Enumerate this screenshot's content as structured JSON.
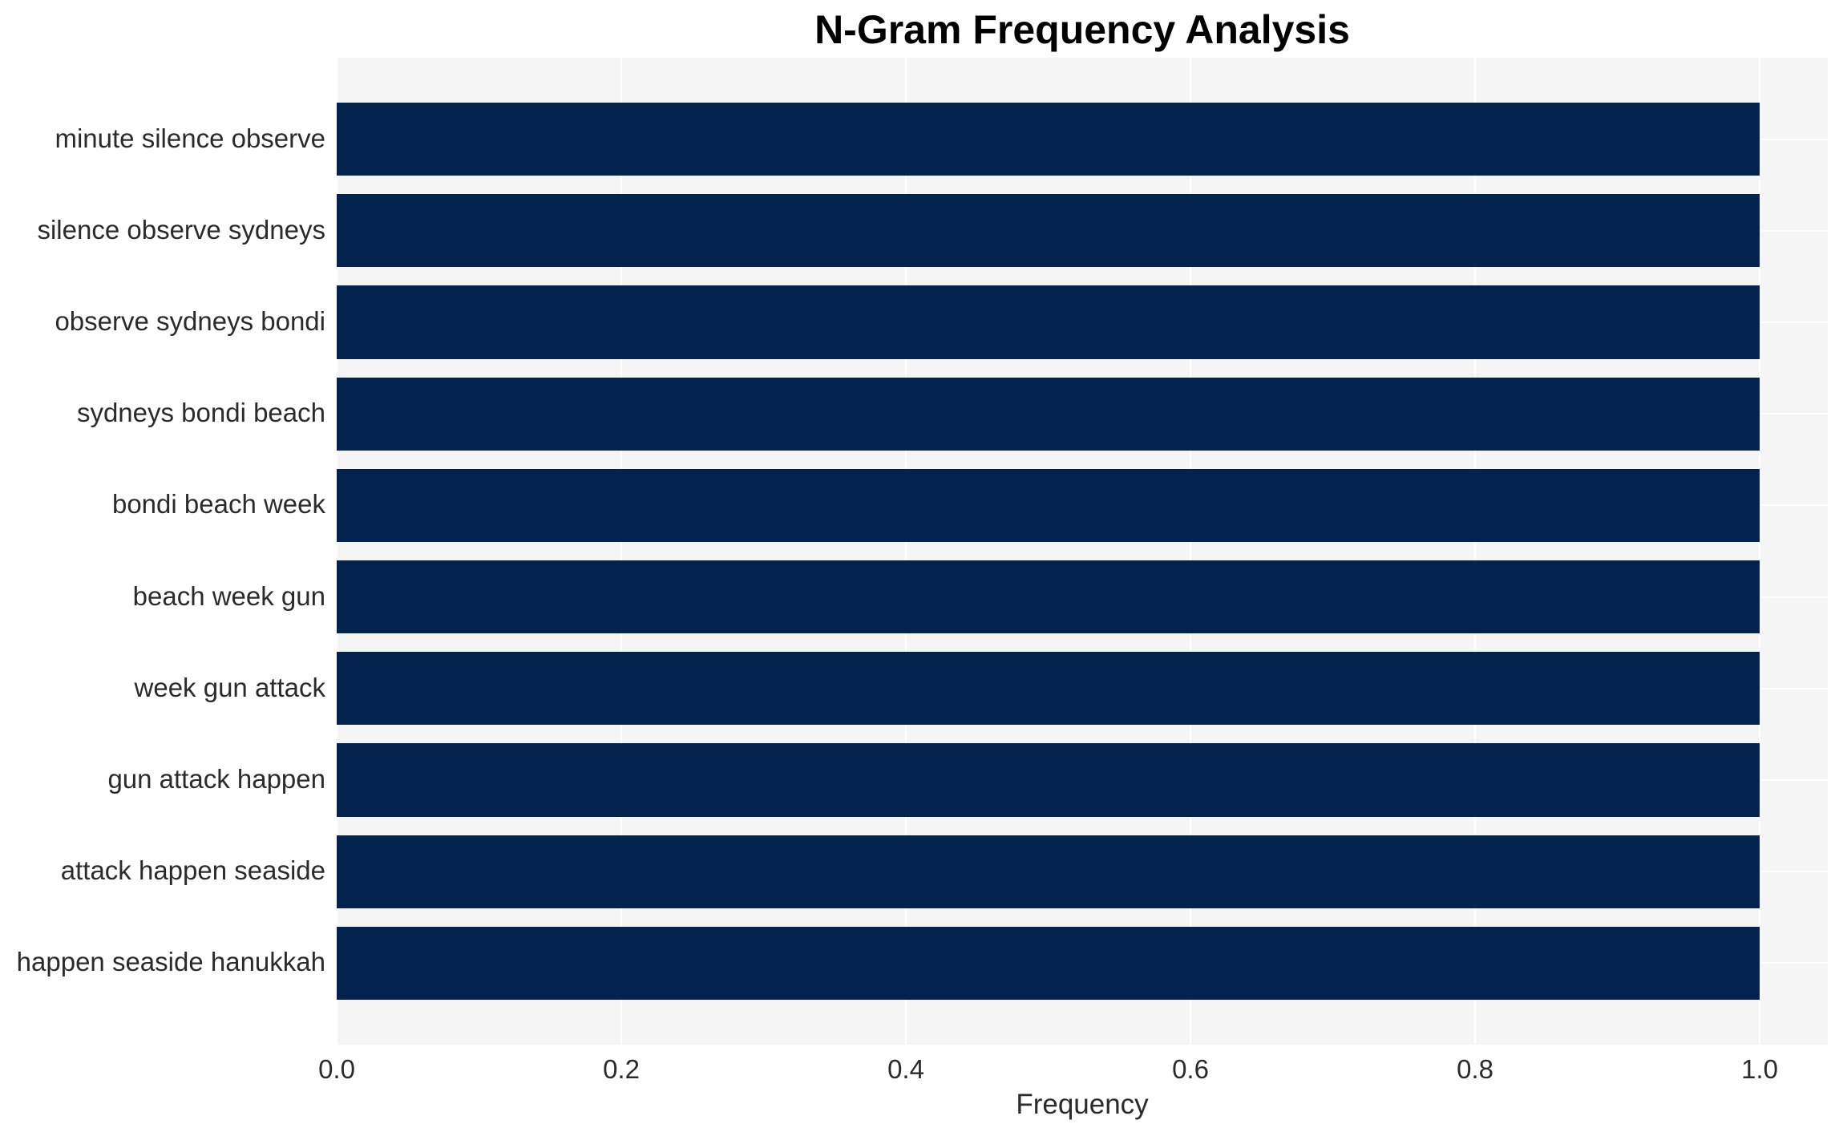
{
  "title": "N-Gram Frequency Analysis",
  "x_axis_label": "Frequency",
  "chart_data": {
    "type": "bar",
    "orientation": "horizontal",
    "title": "N-Gram Frequency Analysis",
    "xlabel": "Frequency",
    "ylabel": "",
    "categories": [
      "minute silence observe",
      "silence observe sydneys",
      "observe sydneys bondi",
      "sydneys bondi beach",
      "bondi beach week",
      "beach week gun",
      "week gun attack",
      "gun attack happen",
      "attack happen seaside",
      "happen seaside hanukkah"
    ],
    "values": [
      1.0,
      1.0,
      1.0,
      1.0,
      1.0,
      1.0,
      1.0,
      1.0,
      1.0,
      1.0
    ],
    "xlim": [
      0.0,
      1.048
    ],
    "xticks": [
      0.0,
      0.2,
      0.4,
      0.6,
      0.8,
      1.0
    ],
    "xtick_labels": [
      "0.0",
      "0.2",
      "0.4",
      "0.6",
      "0.8",
      "1.0"
    ],
    "grid": true,
    "legend": null,
    "colors": {
      "bar": "#03224e",
      "plot_background": "#f5f5f6",
      "gridline": "#ffffff",
      "tick_text": "#2b2b2b",
      "title_text": "#000000"
    }
  }
}
